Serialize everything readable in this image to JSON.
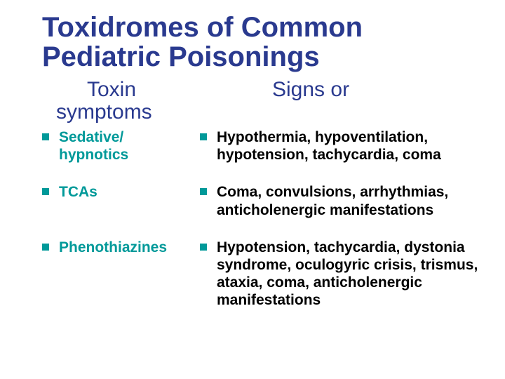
{
  "colors": {
    "title": "#2a3a8f",
    "subhead": "#2a3a8f",
    "toxin_text": "#009999",
    "sign_text": "#000000",
    "bullet": "#009999",
    "background": "#ffffff"
  },
  "typography": {
    "title_fontsize": 40,
    "subhead_fontsize": 30,
    "body_fontsize": 21,
    "font_family": "Arial"
  },
  "title": "Toxidromes of Common Pediatric Poisonings",
  "subheads": {
    "left_line1": "Toxin",
    "left_line2": "symptoms",
    "right": "Signs or"
  },
  "rows": [
    {
      "toxin": "Sedative/ hypnotics",
      "sign": "Hypothermia, hypoventilation, hypotension, tachycardia, coma"
    },
    {
      "toxin": "TCAs",
      "sign": "Coma, convulsions, arrhythmias, anticholenergic manifestations"
    },
    {
      "toxin": "Phenothiazines",
      "sign": "Hypotension, tachycardia, dystonia syndrome, oculogyric crisis, trismus, ataxia, coma, anticholenergic manifestations"
    }
  ]
}
